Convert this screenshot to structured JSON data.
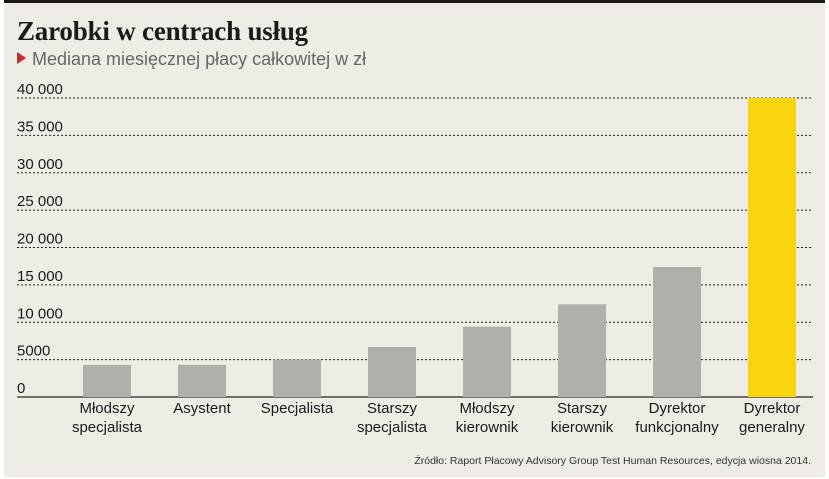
{
  "title": "Zarobki w centrach usług",
  "subtitle": "Mediana miesięcznej płacy całkowitej w zł",
  "source": "Źródło: Raport Płacowy Advisory Group Test Human Resources, edycja wiosna 2014.",
  "colors": {
    "bar": "#b0afaa",
    "highlight": "#f7d40c",
    "grid": "#222222",
    "accent": "#d7262b"
  },
  "chart_data": {
    "type": "bar",
    "title": "Zarobki w centrach usług",
    "subtitle": "Mediana miesięcznej płacy całkowitej w zł",
    "categories": [
      [
        "Młodszy",
        "specjalista"
      ],
      [
        "Asystent"
      ],
      [
        "Specjalista"
      ],
      [
        "Starszy",
        "specjalista"
      ],
      [
        "Młodszy",
        "kierownik"
      ],
      [
        "Starszy",
        "kierownik"
      ],
      [
        "Dyrektor",
        "funkcjonalny"
      ],
      [
        "Dyrektor",
        "generalny"
      ]
    ],
    "values": [
      4300,
      4300,
      5000,
      6700,
      9400,
      12400,
      17400,
      40000
    ],
    "highlight_index": 7,
    "yticks": [
      "0",
      "5000",
      "10 000",
      "15 000",
      "20 000",
      "25 000",
      "30 000",
      "35 000",
      "40 000"
    ],
    "ylim": [
      0,
      40000
    ],
    "grid": true
  }
}
